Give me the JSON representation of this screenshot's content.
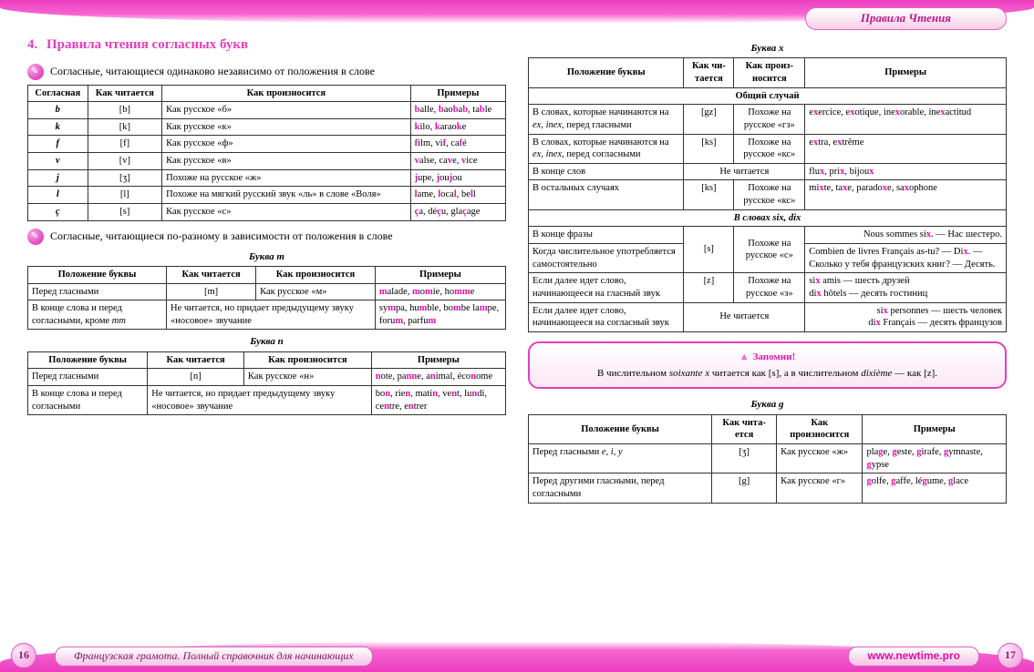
{
  "colors": {
    "accent": "#e23fbb",
    "highlight": "#e20db0",
    "border": "#333333",
    "background": "#ffffff"
  },
  "header": {
    "tab_label": "Правила Чтения"
  },
  "left": {
    "section_num": "4.",
    "section_title": "Правила чтения согласных букв",
    "sub1": "Согласные, читающиеся одинаково независимо от положения в слове",
    "table1": {
      "headers": [
        "Согласная",
        "Как чита­ется",
        "Как произносится",
        "Примеры"
      ],
      "rows": [
        [
          "b",
          "[b]",
          "Как русское «б»",
          [
            [
              "b",
              "alle, "
            ],
            [
              "b",
              "ao"
            ],
            [
              "b",
              "a"
            ],
            [
              "b",
              ", ta"
            ],
            [
              "b",
              "le"
            ]
          ]
        ],
        [
          "k",
          "[k]",
          "Как русское «к»",
          [
            [
              "k",
              "ilo, "
            ],
            [
              "k",
              "arao"
            ],
            [
              "k",
              "e"
            ]
          ]
        ],
        [
          "f",
          "[f]",
          "Как русское «ф»",
          [
            [
              "f",
              "ilm, vi"
            ],
            [
              "f",
              ", ca"
            ],
            [
              "f",
              "é"
            ]
          ]
        ],
        [
          "v",
          "[v]",
          "Как русское «в»",
          [
            [
              "v",
              "alse, ca"
            ],
            [
              "v",
              "e, "
            ],
            [
              "v",
              "ice"
            ]
          ]
        ],
        [
          "j",
          "[ʒ]",
          "Похоже на русское «ж»",
          [
            [
              "j",
              "upe, "
            ],
            [
              "j",
              "ou"
            ],
            [
              "j",
              "ou"
            ]
          ]
        ],
        [
          "l",
          "[l]",
          "Похоже на мягкий русский звук «ль» в слове «Воля»",
          [
            [
              "l",
              "ame, "
            ],
            [
              "l",
              "oca"
            ],
            [
              "l",
              ", be"
            ],
            [
              "l",
              "l",
              "e"
            ]
          ]
        ],
        [
          "ç",
          "[s]",
          "Как русское «с»",
          [
            [
              "ç",
              "a, dé"
            ],
            [
              "ç",
              "u, gla"
            ],
            [
              "ç",
              "age"
            ]
          ]
        ]
      ]
    },
    "sub2": "Согласные, читающиеся по-разному в зависимости от положения в слове",
    "table_m": {
      "title": "Буква m",
      "headers": [
        "Положение буквы",
        "Как читается",
        "Как произносится",
        "Примеры"
      ],
      "rows": [
        [
          "Перед гласными",
          "[m]",
          "Как русское «м»",
          "<span class='hl'>m</span>alade, <span class='hl'>m</span>o<span class='hl'>m</span>ie, ho<span class='hl'>mm</span>e"
        ],
        [
          "В конце слова и перед согласными, кроме <span class='it'>mm</span>",
          "Не читается, но придает предыду­щему звуку «носовое» звучание",
          "",
          "sy<span class='hl'>m</span>pa, hu<span class='hl'>m</span>ble, bo<span class='hl'>m</span>be la<span class='hl'>m</span>pe, foru<span class='hl'>m</span>, parfu<span class='hl'>m</span>"
        ]
      ]
    },
    "table_n": {
      "title": "Буква n",
      "headers": [
        "Положение буквы",
        "Как читается",
        "Как произносится",
        "Примеры"
      ],
      "rows": [
        [
          "Перед гласными",
          "[n]",
          "Как русское «н»",
          "<span class='hl'>n</span>ote, pa<span class='hl'>nn</span>e, a<span class='hl'>n</span>imal, éco<span class='hl'>n</span>ome"
        ],
        [
          "В конце слова и перед согласными",
          "Не читается, но придает предыду­щему звуку «носовое» звучание",
          "",
          "bo<span class='hl'>n</span>, rie<span class='hl'>n</span>, mati<span class='hl'>n</span>, ve<span class='hl'>n</span>t, lu<span class='hl'>n</span>di, ce<span class='hl'>n</span>tre, e<span class='hl'>n</span>trer"
        ]
      ]
    }
  },
  "right": {
    "table_x": {
      "title": "Буква x",
      "headers": [
        "Положение буквы",
        "Как чи­тается",
        "Как произ­носится",
        "Примеры"
      ],
      "common_header": "Общий случай",
      "rows_common": [
        [
          "В словах, которые начинаются на <span class='it'>ex, inex</span>, перед гласными",
          "[gz]",
          "Похоже на русское «гз»",
          "e<span class='hl'>x</span>ercice, e<span class='hl'>x</span>otique, ine<span class='hl'>x</span>orable, ine<span class='hl'>x</span>actitud"
        ],
        [
          "В словах, которые начинаются на <span class='it'>ex, inex</span>, перед согласными",
          "[ks]",
          "Похоже на русское «кс»",
          "e<span class='hl'>x</span>tra, e<span class='hl'>x</span>trême"
        ],
        [
          "В конце слов",
          "Не читается",
          "flu<span class='hl'>x</span>, pri<span class='hl'>x</span>, bijou<span class='hl'>x</span>"
        ],
        [
          "В остальных случаях",
          "[ks]",
          "Похоже на русское «кс»",
          "mi<span class='hl'>x</span>te, ta<span class='hl'>x</span>e, parado<span class='hl'>x</span>e, sa<span class='hl'>x</span>ophone"
        ]
      ],
      "sixdix_header": "В словах six, dix",
      "rows_sixdix": [
        [
          "В конце фразы",
          "[s]",
          "Похоже на русское «с»",
          "Nous sommes si<span class='hl'>x</span>. — Нас шестеро."
        ],
        [
          "Когда числительное употребляется самостоятельно",
          "",
          "",
          "Combien de livres Français as-tu? — Di<span class='hl'>x</span>. — Сколько у тебя французских книг? — Десять."
        ],
        [
          "Если далее идет слово, начинающееся на гласный звук",
          "[z]",
          "Похоже на русское «з»",
          "si<span class='hl'>x</span> amis — шесть друзей<br>di<span class='hl'>x</span> hôtels — десять гостиниц"
        ],
        [
          "Если далее идет слово, начинающееся на согласный звук",
          "Не читается",
          "si<span class='hl'>x</span> personnes — шесть человек<br>di<span class='hl'>x</span> Français — десять французов"
        ]
      ]
    },
    "remember": {
      "title": "Запомни!",
      "body": "В числительном <span class='it'>soixante x</span> читается как [s], а в числительном <span class='it'>dixième</span> — как [z]."
    },
    "table_g": {
      "title": "Буква g",
      "headers": [
        "Положение буквы",
        "Как чита­ется",
        "Как произносится",
        "Примеры"
      ],
      "rows": [
        [
          "Перед гласными <span class='it'>e, i, y</span>",
          "[ʒ]",
          "Как русское «ж»",
          "pla<span class='hl'>g</span>e, <span class='hl'>g</span>este, <span class='hl'>g</span>irafe, <span class='hl'>g</span>ymnaste, <span class='hl'>g</span>ypse"
        ],
        [
          "Перед другими гласными, перед согласными",
          "[g]",
          "Как русское «г»",
          "<span class='hl'>g</span>olfe, <span class='hl'>g</span>affe, lé<span class='hl'>g</span>ume, <span class='hl'>g</span>lace"
        ]
      ]
    }
  },
  "footer": {
    "left_label": "Французская грамота. Полный справочник для начинающих",
    "right_label": "www.newtime.pro",
    "page_left": "16",
    "page_right": "17"
  }
}
